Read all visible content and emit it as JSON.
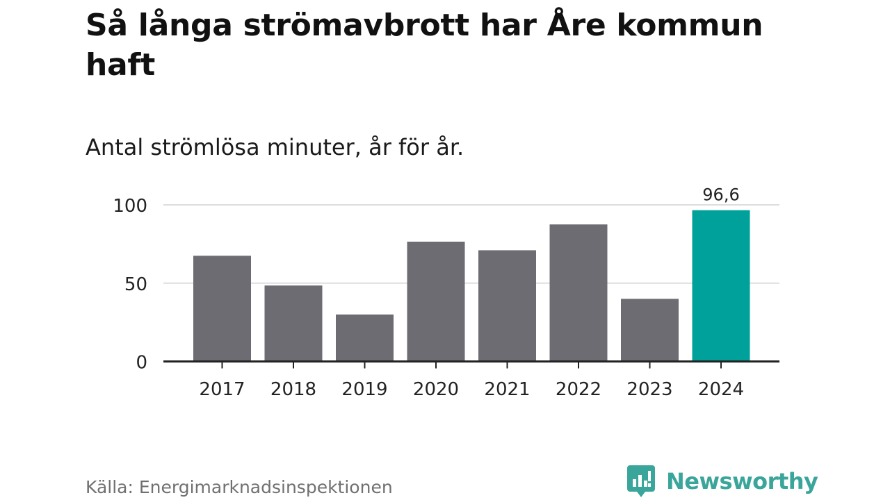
{
  "title": "Så långa strömavbrott har Åre kommun haft",
  "subtitle": "Antal strömlösa minuter, år för år.",
  "source": "Källa: Energimarknadsinspektionen",
  "brand": {
    "name": "Newsworthy",
    "icon": "newsworthy-logo-icon",
    "color": "#3aa59a"
  },
  "colors": {
    "default_bar": "#6d6c72",
    "highlight_bar": "#00a19a",
    "grid": "#dddddd",
    "axis": "#222222"
  },
  "chart_data": {
    "type": "bar",
    "categories": [
      "2017",
      "2018",
      "2019",
      "2020",
      "2021",
      "2022",
      "2023",
      "2024"
    ],
    "values": [
      67.5,
      48.5,
      30,
      76.5,
      71,
      87.5,
      40,
      96.6
    ],
    "highlight_index": 7,
    "data_labels": [
      {
        "index": 7,
        "text": "96,6"
      }
    ],
    "yticks": [
      0,
      50,
      100
    ],
    "ytick_labels": [
      "0",
      "50",
      "100"
    ],
    "ylim": [
      0,
      100
    ],
    "xlabel": "",
    "ylabel": "",
    "grid": true,
    "legend": "none"
  }
}
